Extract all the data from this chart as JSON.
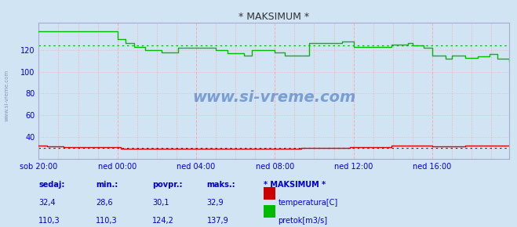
{
  "title": "* MAKSIMUM *",
  "bg_color": "#d0e4f4",
  "plot_bg_color": "#d0e4f4",
  "xlim": [
    0,
    287
  ],
  "ylim": [
    20,
    145
  ],
  "yticks": [
    40,
    60,
    80,
    100,
    120
  ],
  "xtick_labels": [
    "sob 20:00",
    "ned 00:00",
    "ned 04:00",
    "ned 08:00",
    "ned 12:00",
    "ned 16:00"
  ],
  "xtick_positions": [
    0,
    48,
    96,
    144,
    192,
    240
  ],
  "temp_color": "#dd0000",
  "flow_color": "#00bb00",
  "temp_avg": 30.1,
  "flow_avg": 124.2,
  "temp_max": 32.9,
  "flow_max": 137.9,
  "temp_current": 32.4,
  "flow_current": 110.3,
  "temp_min": 28.6,
  "flow_min": 110.3,
  "watermark": "www.si-vreme.com",
  "watermark_color": "#3366bb",
  "label_color": "#0000cc",
  "legend_title": "* MAKSIMUM *",
  "footer_labels": [
    "sedaj:",
    "min.:",
    "povpr.:",
    "maks.:"
  ],
  "footer_color": "#0000cc",
  "title_color": "#333333",
  "grid_v_color": "#ffaaaa",
  "grid_h_color": "#ffaaaa",
  "sidebar_text_color": "#8899bb"
}
